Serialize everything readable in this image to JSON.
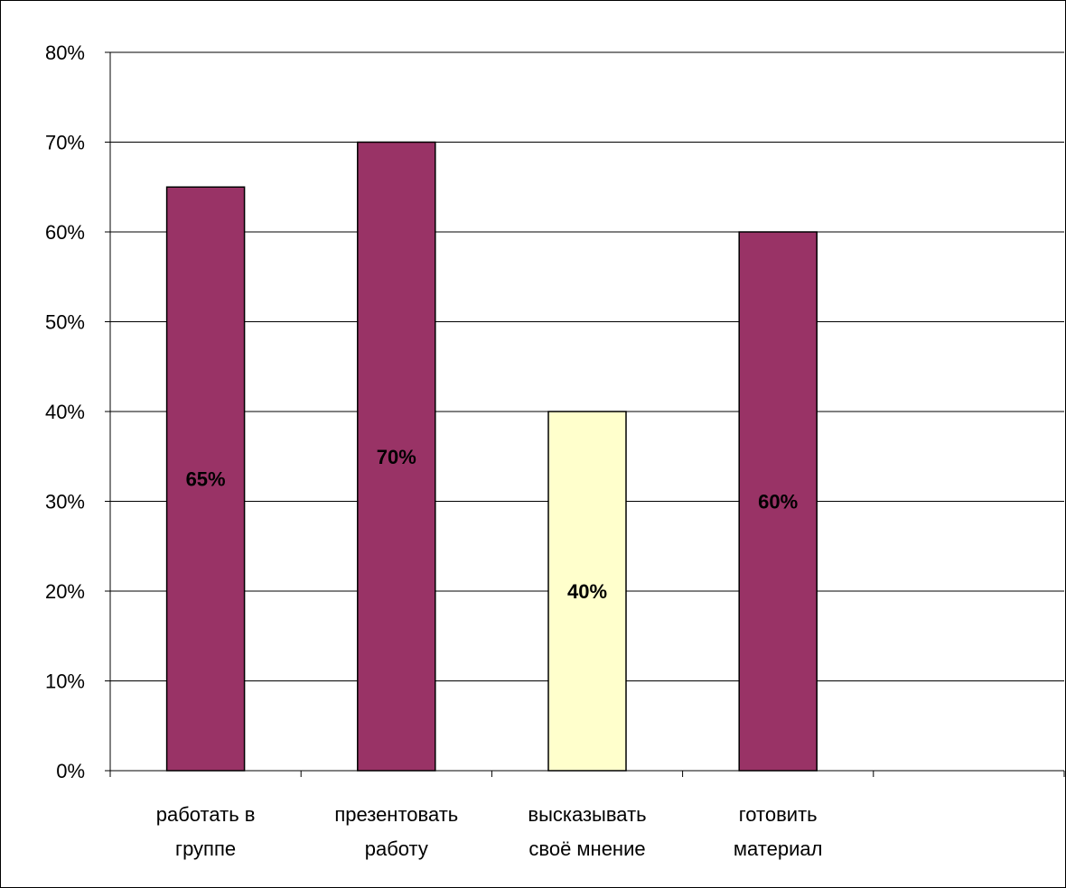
{
  "chart_data": {
    "type": "bar",
    "categories": [
      [
        "работать в",
        "группе"
      ],
      [
        "презентовать",
        "работу"
      ],
      [
        "высказывать",
        "своё мнение"
      ],
      [
        "готовить",
        "материал"
      ],
      [
        ""
      ]
    ],
    "values": [
      65,
      70,
      40,
      60,
      null
    ],
    "data_labels": [
      "65%",
      "70%",
      "40%",
      "60%",
      ""
    ],
    "bar_colors": [
      "#993366",
      "#993366",
      "#FFFFCC",
      "#993366",
      "#993366"
    ],
    "yticks": [
      "0%",
      "10%",
      "20%",
      "30%",
      "40%",
      "50%",
      "60%",
      "70%",
      "80%"
    ],
    "ylim": [
      0,
      80
    ],
    "grid": true,
    "legend": "none",
    "title": "",
    "xlabel": "",
    "ylabel": ""
  },
  "colors": {
    "background": "#FFFFFF",
    "gridline": "#000000"
  }
}
